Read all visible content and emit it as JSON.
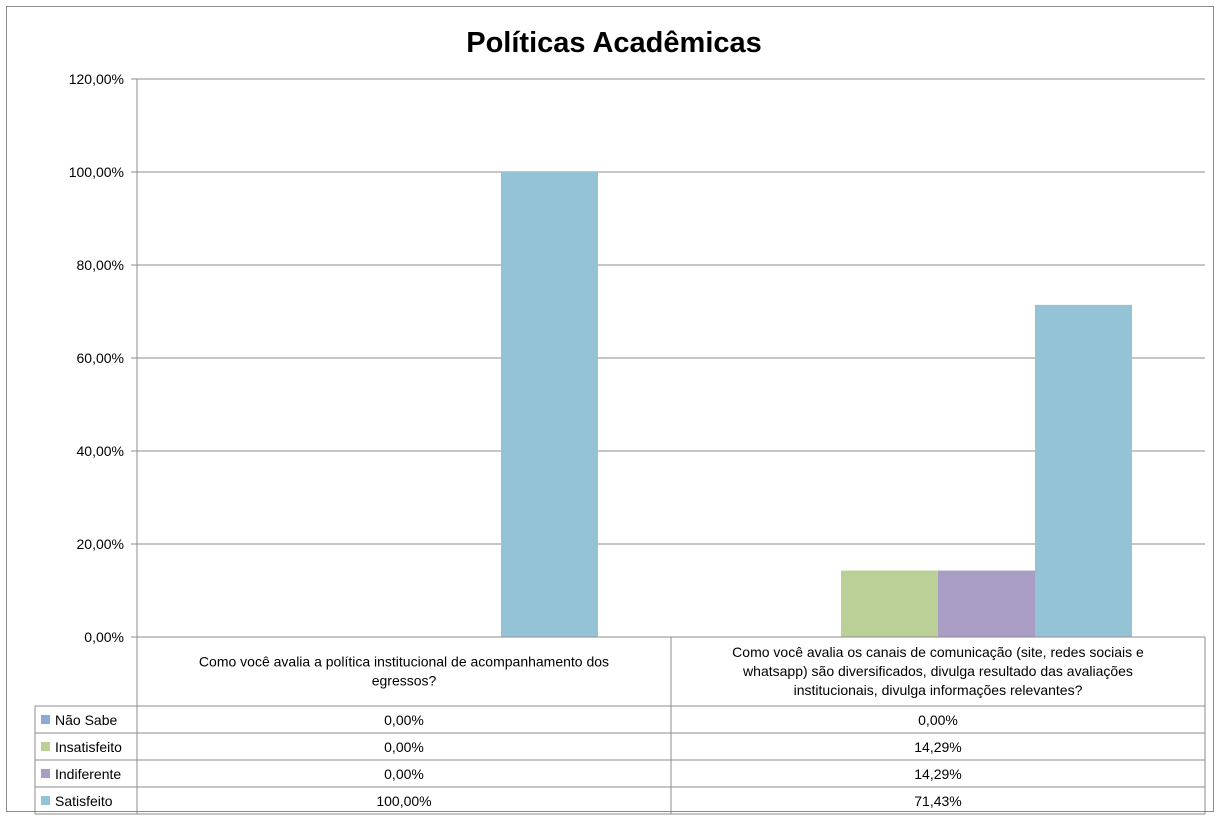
{
  "chart_data": {
    "type": "bar",
    "title": "Políticas Acadêmicas",
    "xlabel": "",
    "ylabel": "",
    "ylim": [
      0,
      120
    ],
    "y_ticks": [
      "0,00%",
      "20,00%",
      "40,00%",
      "60,00%",
      "80,00%",
      "100,00%",
      "120,00%"
    ],
    "categories": [
      [
        "Como você avalia a política institucional de acompanhamento dos",
        "egressos?"
      ],
      [
        "Como você avalia os canais de comunicação (site, redes sociais e",
        "whatsapp) são diversificados, divulga resultado das avaliações",
        "institucionais, divulga informações relevantes?"
      ]
    ],
    "series": [
      {
        "name": "Não Sabe",
        "color": "#8EA9D8",
        "values": [
          0,
          0
        ],
        "labels": [
          "0,00%",
          "0,00%"
        ]
      },
      {
        "name": "Insatisfeito",
        "color": "#BBD096",
        "values": [
          0,
          14.29
        ],
        "labels": [
          "0,00%",
          "14,29%"
        ]
      },
      {
        "name": "Indiferente",
        "color": "#AA9DC3",
        "values": [
          0,
          14.29
        ],
        "labels": [
          "0,00%",
          "14,29%"
        ]
      },
      {
        "name": "Satisfeito",
        "color": "#93C3D4",
        "values": [
          100,
          71.43
        ],
        "labels": [
          "100,00%",
          "71,43%"
        ]
      }
    ],
    "grid": true,
    "legend": "data-table"
  }
}
